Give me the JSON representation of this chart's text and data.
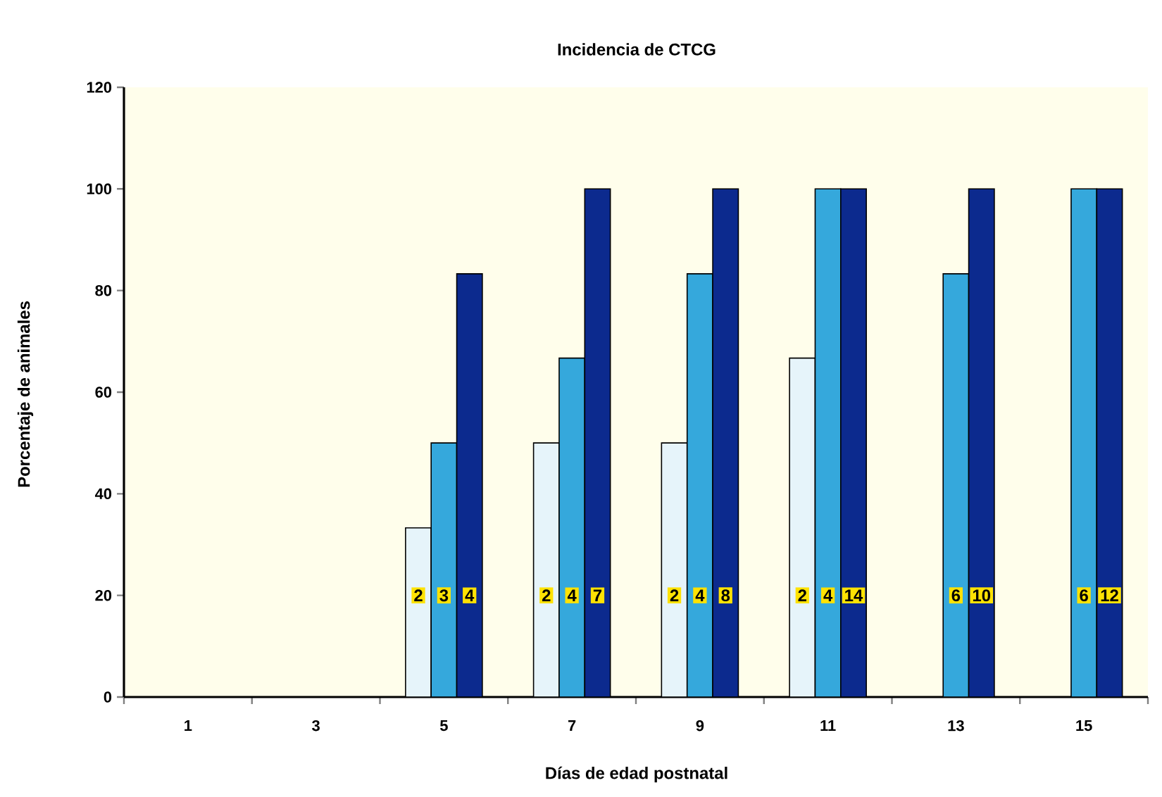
{
  "chart_data": {
    "type": "bar",
    "title": "Incidencia de CTCG",
    "xlabel": "Días de edad postnatal",
    "ylabel": "Porcentaje de animales",
    "categories": [
      "1",
      "3",
      "5",
      "7",
      "9",
      "11",
      "13",
      "15"
    ],
    "series": [
      {
        "color": "#e6f4fa",
        "values": [
          null,
          null,
          33.3,
          50,
          50,
          66.7,
          null,
          null
        ]
      },
      {
        "color": "#35a8dc",
        "values": [
          null,
          null,
          50,
          66.7,
          83.3,
          100,
          83.3,
          100
        ]
      },
      {
        "color": "#0c2a8e",
        "values": [
          null,
          null,
          83.3,
          100,
          100,
          100,
          100,
          100
        ]
      }
    ],
    "annotations": [
      "2",
      "3",
      "4",
      "2",
      "4",
      "7",
      "2",
      "4",
      "8",
      "2",
      "4",
      "14",
      "6",
      "10",
      "6",
      "12"
    ],
    "ylim": [
      0,
      120
    ],
    "yticks": [
      0,
      20,
      40,
      60,
      80,
      100,
      120
    ],
    "grid": false
  }
}
